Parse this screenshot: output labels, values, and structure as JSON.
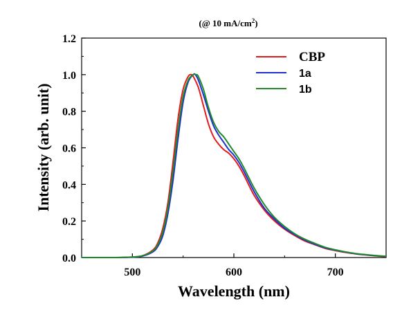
{
  "chart_data": {
    "type": "line",
    "title_main": "(@ 10 mA/cm",
    "title_sup": "2",
    "title_end": ")",
    "xlabel": "Wavelength (nm)",
    "ylabel": "Intensity (arb. unit)",
    "xlim": [
      450,
      750
    ],
    "ylim": [
      0.0,
      1.2
    ],
    "xticks": [
      500,
      600,
      700
    ],
    "yticks": [
      "0.0",
      "0.2",
      "0.4",
      "0.6",
      "0.8",
      "1.0",
      "1.2"
    ],
    "legend_position": "top-right",
    "series": [
      {
        "name": "CBP",
        "color": "#e41a1c",
        "x": [
          450,
          480,
          500,
          510,
          520,
          525,
          530,
          535,
          540,
          545,
          550,
          555,
          558,
          560,
          565,
          570,
          575,
          580,
          585,
          590,
          595,
          600,
          605,
          610,
          620,
          630,
          640,
          650,
          660,
          670,
          680,
          690,
          700,
          710,
          720,
          730,
          740,
          750
        ],
        "y": [
          0.0,
          0.0,
          0.003,
          0.01,
          0.04,
          0.08,
          0.16,
          0.3,
          0.52,
          0.76,
          0.92,
          0.99,
          1.0,
          0.99,
          0.93,
          0.83,
          0.73,
          0.66,
          0.62,
          0.59,
          0.57,
          0.54,
          0.5,
          0.45,
          0.34,
          0.26,
          0.2,
          0.155,
          0.12,
          0.09,
          0.07,
          0.05,
          0.038,
          0.028,
          0.02,
          0.014,
          0.009,
          0.005
        ]
      },
      {
        "name": "1a",
        "color": "#1f2fcf",
        "x": [
          450,
          480,
          500,
          510,
          520,
          525,
          530,
          535,
          540,
          545,
          550,
          555,
          560,
          562,
          565,
          570,
          575,
          580,
          585,
          590,
          595,
          600,
          605,
          610,
          620,
          630,
          640,
          650,
          660,
          670,
          680,
          690,
          700,
          710,
          720,
          730,
          740,
          750
        ],
        "y": [
          0.0,
          0.0,
          0.002,
          0.008,
          0.03,
          0.06,
          0.12,
          0.24,
          0.42,
          0.65,
          0.85,
          0.96,
          1.0,
          1.0,
          0.97,
          0.89,
          0.8,
          0.72,
          0.67,
          0.63,
          0.59,
          0.56,
          0.52,
          0.47,
          0.36,
          0.27,
          0.21,
          0.16,
          0.125,
          0.095,
          0.072,
          0.053,
          0.04,
          0.03,
          0.021,
          0.015,
          0.01,
          0.006
        ]
      },
      {
        "name": "1b",
        "color": "#1f8a2a",
        "x": [
          450,
          480,
          500,
          510,
          520,
          525,
          530,
          535,
          540,
          545,
          550,
          555,
          560,
          563,
          565,
          570,
          575,
          580,
          585,
          590,
          595,
          600,
          605,
          610,
          620,
          630,
          640,
          650,
          660,
          670,
          680,
          690,
          700,
          710,
          720,
          730,
          740,
          750
        ],
        "y": [
          0.0,
          0.0,
          0.003,
          0.01,
          0.035,
          0.07,
          0.14,
          0.27,
          0.47,
          0.7,
          0.88,
          0.97,
          1.0,
          1.0,
          0.99,
          0.92,
          0.82,
          0.74,
          0.69,
          0.66,
          0.62,
          0.58,
          0.54,
          0.49,
          0.38,
          0.29,
          0.22,
          0.17,
          0.13,
          0.1,
          0.077,
          0.056,
          0.042,
          0.031,
          0.022,
          0.016,
          0.011,
          0.007
        ]
      }
    ]
  }
}
